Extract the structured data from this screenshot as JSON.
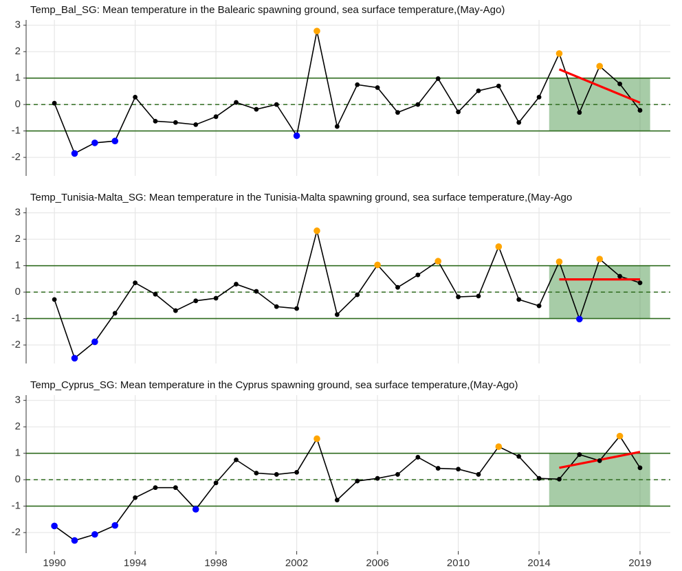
{
  "chart_data": [
    {
      "type": "line",
      "title": "Temp_Bal_SG: Mean temperature in the Balearic spawning ground, sea surface temperature,(May-Ago)",
      "x": [
        1990,
        1991,
        1992,
        1993,
        1994,
        1995,
        1996,
        1997,
        1998,
        1999,
        2000,
        2001,
        2002,
        2003,
        2004,
        2005,
        2006,
        2007,
        2008,
        2009,
        2010,
        2011,
        2012,
        2013,
        2014,
        2015,
        2016,
        2017,
        2018,
        2019
      ],
      "values": [
        0.05,
        -1.85,
        -1.45,
        -1.38,
        0.28,
        -0.63,
        -0.68,
        -0.76,
        -0.46,
        0.08,
        -0.18,
        0.0,
        -1.18,
        2.78,
        -0.83,
        0.75,
        0.64,
        -0.3,
        0.0,
        0.98,
        -0.28,
        0.52,
        0.7,
        -0.68,
        0.28,
        1.93,
        -0.3,
        1.45,
        0.78,
        -0.22
      ],
      "color": "#000000",
      "high_color": "#ffa500",
      "low_color": "#0000ff",
      "hlines": [
        1,
        -1
      ],
      "hline_color": "#2e6b1e",
      "mean_line": 0,
      "highlight": {
        "xlim": [
          2014.5,
          2019.5
        ],
        "ylim": [
          -1,
          1
        ],
        "color": "#3c8f3c"
      },
      "trend": {
        "x": [
          2015,
          2019
        ],
        "values": [
          1.33,
          0.07
        ],
        "color": "#ff0000"
      },
      "xlim": [
        1988.6,
        2020.5
      ],
      "ylim": [
        -2.7,
        3.2
      ],
      "yticks": [
        -2,
        -1,
        0,
        1,
        2,
        3
      ],
      "grid": true
    },
    {
      "type": "line",
      "title": "Temp_Tunisia-Malta_SG: Mean temperature in the Tunisia-Malta spawning ground, sea surface temperature,(May-Ago",
      "x": [
        1990,
        1991,
        1992,
        1993,
        1994,
        1995,
        1996,
        1997,
        1998,
        1999,
        2000,
        2001,
        2002,
        2003,
        2004,
        2005,
        2006,
        2007,
        2008,
        2009,
        2010,
        2011,
        2012,
        2013,
        2014,
        2015,
        2016,
        2017,
        2018,
        2019
      ],
      "values": [
        -0.28,
        -2.5,
        -1.88,
        -0.8,
        0.35,
        -0.08,
        -0.7,
        -0.33,
        -0.23,
        0.3,
        0.03,
        -0.55,
        -0.62,
        2.32,
        -0.85,
        -0.1,
        1.03,
        0.18,
        0.65,
        1.17,
        -0.18,
        -0.15,
        1.72,
        -0.28,
        -0.52,
        1.15,
        -1.02,
        1.25,
        0.6,
        0.35
      ],
      "color": "#000000",
      "high_color": "#ffa500",
      "low_color": "#0000ff",
      "hlines": [
        1,
        -1
      ],
      "hline_color": "#2e6b1e",
      "mean_line": 0,
      "highlight": {
        "xlim": [
          2014.5,
          2019.5
        ],
        "ylim": [
          -1,
          1
        ],
        "color": "#3c8f3c"
      },
      "trend": {
        "x": [
          2015,
          2019
        ],
        "values": [
          0.48,
          0.48
        ],
        "color": "#ff0000"
      },
      "xlim": [
        1988.6,
        2020.5
      ],
      "ylim": [
        -2.7,
        3.2
      ],
      "yticks": [
        -2,
        -1,
        0,
        1,
        2,
        3
      ],
      "grid": true
    },
    {
      "type": "line",
      "title": "Temp_Cyprus_SG: Mean temperature in the Cyprus spawning ground, sea surface temperature,(May-Ago)",
      "x": [
        1990,
        1991,
        1992,
        1993,
        1994,
        1995,
        1996,
        1997,
        1998,
        1999,
        2000,
        2001,
        2002,
        2003,
        2004,
        2005,
        2006,
        2007,
        2008,
        2009,
        2010,
        2011,
        2012,
        2013,
        2014,
        2015,
        2016,
        2017,
        2018,
        2019
      ],
      "values": [
        -1.75,
        -2.3,
        -2.07,
        -1.73,
        -0.68,
        -0.3,
        -0.3,
        -1.12,
        -0.12,
        0.75,
        0.25,
        0.2,
        0.28,
        1.55,
        -0.77,
        -0.05,
        0.05,
        0.2,
        0.85,
        0.43,
        0.4,
        0.2,
        1.25,
        0.88,
        0.05,
        0.02,
        0.95,
        0.72,
        1.65,
        0.45
      ],
      "color": "#000000",
      "high_color": "#ffa500",
      "low_color": "#0000ff",
      "hlines": [
        1,
        -1
      ],
      "hline_color": "#2e6b1e",
      "mean_line": 0,
      "highlight": {
        "xlim": [
          2014.5,
          2019.5
        ],
        "ylim": [
          -1,
          1
        ],
        "color": "#3c8f3c"
      },
      "trend": {
        "x": [
          2015,
          2019
        ],
        "values": [
          0.45,
          1.05
        ],
        "color": "#ff0000"
      },
      "xlim": [
        1988.6,
        2020.5
      ],
      "ylim": [
        -2.7,
        3.2
      ],
      "yticks": [
        -2,
        -1,
        0,
        1,
        2,
        3
      ],
      "xticks": [
        1990,
        1994,
        1998,
        2002,
        2006,
        2010,
        2014,
        2019
      ],
      "grid": true
    }
  ]
}
